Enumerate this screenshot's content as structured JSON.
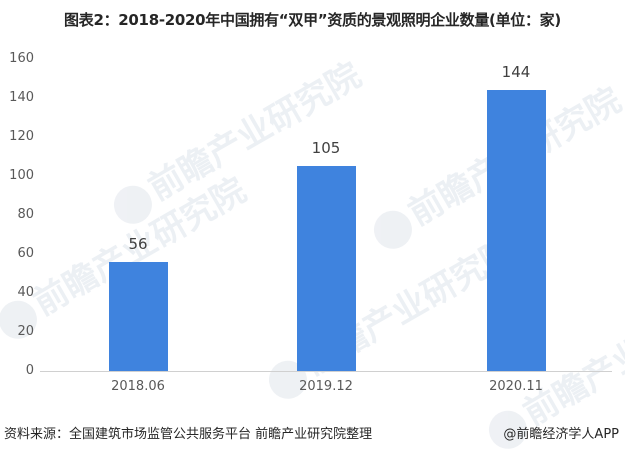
{
  "title": "图表2：2018-2020年中国拥有“双甲”资质的景观照明企业数量(单位：家)",
  "footer": {
    "source": "资料来源：全国建筑市场监管公共服务平台 前瞻产业研究院整理",
    "credit": "@前瞻经济学人APP"
  },
  "watermark": "前瞻产业研究院",
  "colors": {
    "bar": "#3f83de",
    "axis": "#d0d0d0"
  },
  "chart_data": {
    "type": "bar",
    "title": "图表2：2018-2020年中国拥有“双甲”资质的景观照明企业数量(单位：家)",
    "categories": [
      "2018.06",
      "2019.12",
      "2020.11"
    ],
    "values": [
      56,
      105,
      144
    ],
    "value_labels": [
      "56",
      "105",
      "144"
    ],
    "xlabel": "",
    "ylabel": "",
    "unit": "家",
    "ylim": [
      0,
      160
    ],
    "yticks": [
      "0",
      "20",
      "40",
      "60",
      "80",
      "100",
      "120",
      "140",
      "160"
    ],
    "grid": false,
    "legend": "none"
  }
}
